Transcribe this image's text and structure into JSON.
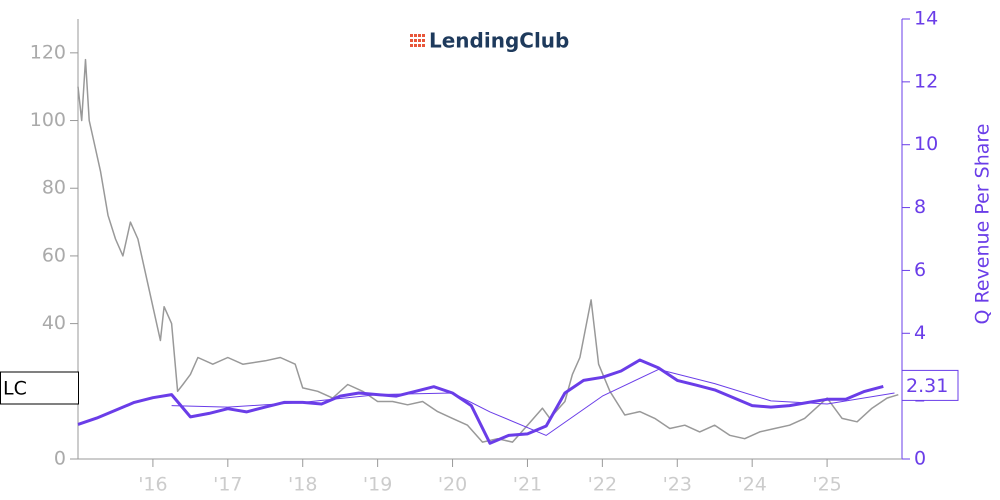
{
  "logo": "LendingClub",
  "chart_data": {
    "type": "line",
    "y2_label": "Q Revenue Per Share",
    "ticker_label": "LC",
    "xlim": [
      2015,
      2026
    ],
    "xticks": [
      {
        "value": 2016,
        "label": "'16"
      },
      {
        "value": 2017,
        "label": "'17"
      },
      {
        "value": 2018,
        "label": "'18"
      },
      {
        "value": 2019,
        "label": "'19"
      },
      {
        "value": 2020,
        "label": "'20"
      },
      {
        "value": 2021,
        "label": "'21"
      },
      {
        "value": 2022,
        "label": "'22"
      },
      {
        "value": 2023,
        "label": "'23"
      },
      {
        "value": 2024,
        "label": "'24"
      },
      {
        "value": 2025,
        "label": "'25"
      }
    ],
    "ylim": [
      0,
      130
    ],
    "yticks": [
      0,
      20,
      40,
      60,
      80,
      100,
      120
    ],
    "y2lim": [
      0,
      14
    ],
    "y2ticks": [
      0,
      2,
      4,
      6,
      8,
      10,
      12,
      14
    ],
    "series": [
      {
        "color": "#999999",
        "width": 1.5,
        "axis": "y",
        "x": [
          2015.0,
          2015.05,
          2015.1,
          2015.15,
          2015.2,
          2015.3,
          2015.4,
          2015.5,
          2015.6,
          2015.7,
          2015.8,
          2015.9,
          2016.0,
          2016.1,
          2016.15,
          2016.25,
          2016.33,
          2016.4,
          2016.5,
          2016.6,
          2016.8,
          2017.0,
          2017.2,
          2017.5,
          2017.7,
          2017.9,
          2018.0,
          2018.2,
          2018.4,
          2018.6,
          2018.8,
          2019.0,
          2019.2,
          2019.4,
          2019.6,
          2019.8,
          2020.0,
          2020.2,
          2020.4,
          2020.6,
          2020.8,
          2021.0,
          2021.2,
          2021.3,
          2021.5,
          2021.6,
          2021.7,
          2021.85,
          2021.95,
          2022.1,
          2022.3,
          2022.5,
          2022.7,
          2022.9,
          2023.1,
          2023.3,
          2023.5,
          2023.7,
          2023.9,
          2024.1,
          2024.3,
          2024.5,
          2024.7,
          2024.9,
          2025.0,
          2025.2,
          2025.4,
          2025.6,
          2025.8,
          2025.95
        ],
        "values": [
          110,
          100,
          118,
          100,
          95,
          85,
          72,
          65,
          60,
          70,
          65,
          55,
          45,
          35,
          45,
          40,
          20,
          22,
          25,
          30,
          28,
          30,
          28,
          29,
          30,
          28,
          21,
          20,
          18,
          22,
          20,
          17,
          17,
          16,
          17,
          14,
          12,
          10,
          5,
          6,
          5,
          10,
          15,
          12,
          17,
          25,
          30,
          47,
          28,
          20,
          13,
          14,
          12,
          9,
          10,
          8,
          10,
          7,
          6,
          8,
          9,
          10,
          12,
          16,
          18,
          12,
          11,
          15,
          18,
          19
        ]
      },
      {
        "color": "#6a3de8",
        "width": 1,
        "axis": "y2",
        "x": [
          2016.25,
          2017.0,
          2018.0,
          2019.0,
          2020.0,
          2020.5,
          2021.25,
          2022.0,
          2022.75,
          2023.5,
          2024.25,
          2025.0,
          2025.9
        ],
        "values": [
          1.7,
          1.65,
          1.8,
          2.05,
          2.1,
          1.5,
          0.75,
          2.0,
          2.85,
          2.4,
          1.85,
          1.75,
          2.1
        ]
      },
      {
        "color": "#6a3de8",
        "width": 3,
        "axis": "y2",
        "x": [
          2015.0,
          2015.25,
          2015.5,
          2015.75,
          2016.0,
          2016.25,
          2016.5,
          2016.75,
          2017.0,
          2017.25,
          2017.5,
          2017.75,
          2018.0,
          2018.25,
          2018.5,
          2018.75,
          2019.0,
          2019.25,
          2019.5,
          2019.75,
          2020.0,
          2020.25,
          2020.5,
          2020.75,
          2021.0,
          2021.25,
          2021.5,
          2021.75,
          2022.0,
          2022.25,
          2022.5,
          2022.75,
          2023.0,
          2023.25,
          2023.5,
          2023.75,
          2024.0,
          2024.25,
          2024.5,
          2024.75,
          2025.0,
          2025.25,
          2025.5,
          2025.75
        ],
        "values": [
          1.1,
          1.3,
          1.55,
          1.8,
          1.95,
          2.05,
          1.34,
          1.45,
          1.6,
          1.5,
          1.65,
          1.8,
          1.8,
          1.75,
          2.0,
          2.1,
          2.05,
          2.0,
          2.15,
          2.3,
          2.1,
          1.7,
          0.5,
          0.75,
          0.8,
          1.05,
          2.1,
          2.5,
          2.6,
          2.8,
          3.15,
          2.9,
          2.5,
          2.35,
          2.2,
          1.95,
          1.7,
          1.65,
          1.7,
          1.8,
          1.9,
          1.9,
          2.15,
          2.31
        ],
        "value_labels": [
          null,
          null,
          null,
          null,
          null,
          null,
          null,
          null,
          null,
          null,
          null,
          null,
          null,
          null,
          null,
          null,
          null,
          null,
          null,
          null,
          null,
          null,
          null,
          null,
          null,
          null,
          null,
          null,
          null,
          null,
          null,
          null,
          null,
          null,
          null,
          null,
          null,
          null,
          null,
          null,
          null,
          null,
          null,
          "2.31"
        ]
      }
    ]
  }
}
